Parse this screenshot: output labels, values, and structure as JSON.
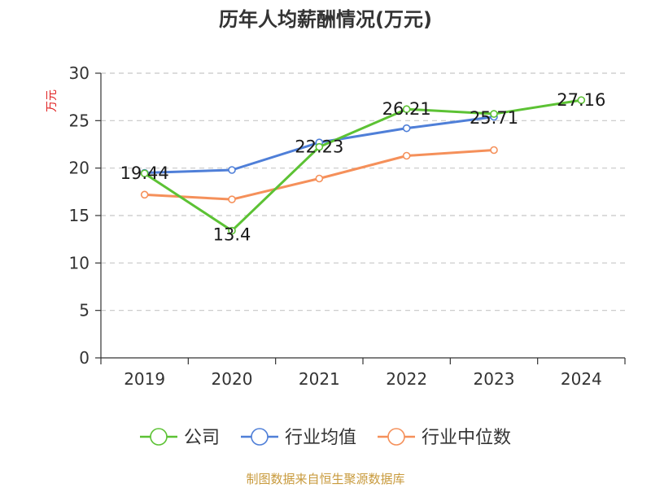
{
  "chart_data": {
    "type": "line",
    "title": "历年人均薪酬情况(万元)",
    "ylabel": "万元",
    "xlabel": "",
    "categories": [
      "2019",
      "2020",
      "2021",
      "2022",
      "2023",
      "2024"
    ],
    "ylim": [
      0,
      30
    ],
    "yticks": [
      "0",
      "5",
      "10",
      "15",
      "20",
      "25",
      "30"
    ],
    "grid": true,
    "legend_position": "bottom",
    "series": [
      {
        "name": "公司",
        "color": "#5cc234",
        "values": [
          19.44,
          13.4,
          22.23,
          26.21,
          25.71,
          27.16
        ],
        "labels": [
          "19.44",
          "13.4",
          "22.23",
          "26.21",
          "25.71",
          "27.16"
        ]
      },
      {
        "name": "行业均值",
        "color": "#4f7fd8",
        "values": [
          19.5,
          19.8,
          22.7,
          24.2,
          25.4,
          null
        ]
      },
      {
        "name": "行业中位数",
        "color": "#f5905a",
        "values": [
          17.2,
          16.7,
          18.9,
          21.3,
          21.9,
          null
        ]
      }
    ]
  },
  "source": "制图数据来自恒生聚源数据库"
}
